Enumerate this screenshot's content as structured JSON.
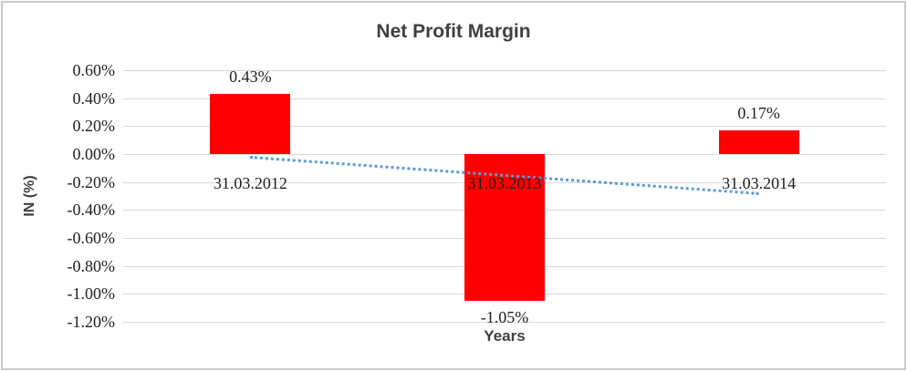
{
  "chart_data": {
    "type": "bar",
    "title": "Net Profit Margin",
    "xlabel": "Years",
    "ylabel": "IN (%)",
    "categories": [
      "31.03.2012",
      "31.03.2013",
      "31.03.2014"
    ],
    "values": [
      0.43,
      -1.05,
      0.17
    ],
    "data_labels": [
      "0.43%",
      "-1.05%",
      "0.17%"
    ],
    "unit": "%",
    "ylim": [
      -1.2,
      0.6
    ],
    "y_ticks": {
      "values": [
        0.6,
        0.4,
        0.2,
        0.0,
        -0.2,
        -0.4,
        -0.6,
        -0.8,
        -1.0,
        -1.2
      ],
      "labels": [
        "0.60%",
        "0.40%",
        "0.20%",
        "0.00%",
        "-0.20%",
        "-0.40%",
        "-0.60%",
        "-0.80%",
        "-1.00%",
        "-1.20%"
      ]
    },
    "grid": "horizontal",
    "legend": "none",
    "bar_color": "#FF0000",
    "gridline_color": "#D9D9D9",
    "text_color": "#1F1F1F",
    "title_color": "#404040",
    "border_color": "#C9C9C9",
    "trendline": {
      "type": "linear",
      "style": "dotted",
      "color": "#5B9BD5",
      "span_categories": [
        "31.03.2012",
        "31.03.2014"
      ],
      "start_value": -0.02,
      "end_value": -0.28
    }
  }
}
